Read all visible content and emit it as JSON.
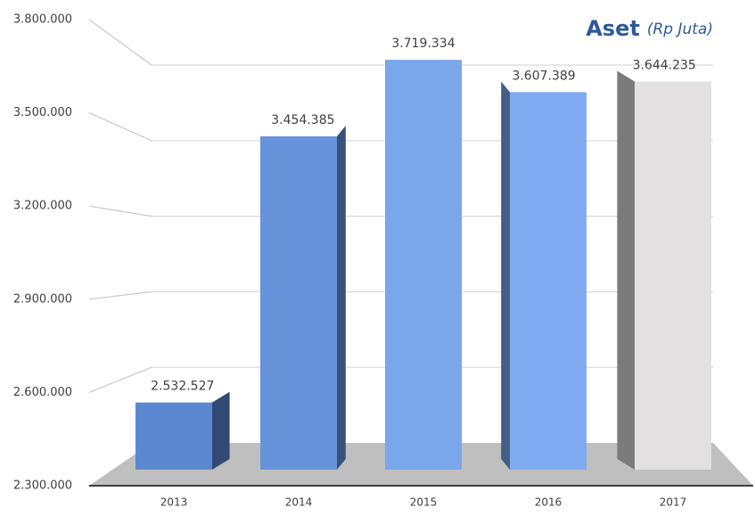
{
  "chart_data": {
    "type": "bar3d",
    "title": "Aset",
    "subtitle": "(Rp Juta)",
    "categories": [
      "2013",
      "2014",
      "2015",
      "2016",
      "2017"
    ],
    "values": [
      2532527,
      3454385,
      3719334,
      3607389,
      3644235
    ],
    "value_labels": [
      "2.532.527",
      "3.454.385",
      "3.719.334",
      "3.607.389",
      "3.644.235"
    ],
    "colors": [
      "#5b87d1",
      "#6793db",
      "#7aa6ea",
      "#7fabf2",
      "#e2e0e0"
    ],
    "ylim": [
      2300000,
      3800000
    ],
    "yticks": [
      {
        "value": 2300000,
        "label": "2.300.000"
      },
      {
        "value": 2600000,
        "label": "2.600.000"
      },
      {
        "value": 2900000,
        "label": "2.900.000"
      },
      {
        "value": 3200000,
        "label": "3.200.000"
      },
      {
        "value": 3500000,
        "label": "3.500.000"
      },
      {
        "value": 3800000,
        "label": "3.800.000"
      }
    ],
    "grid": true
  }
}
